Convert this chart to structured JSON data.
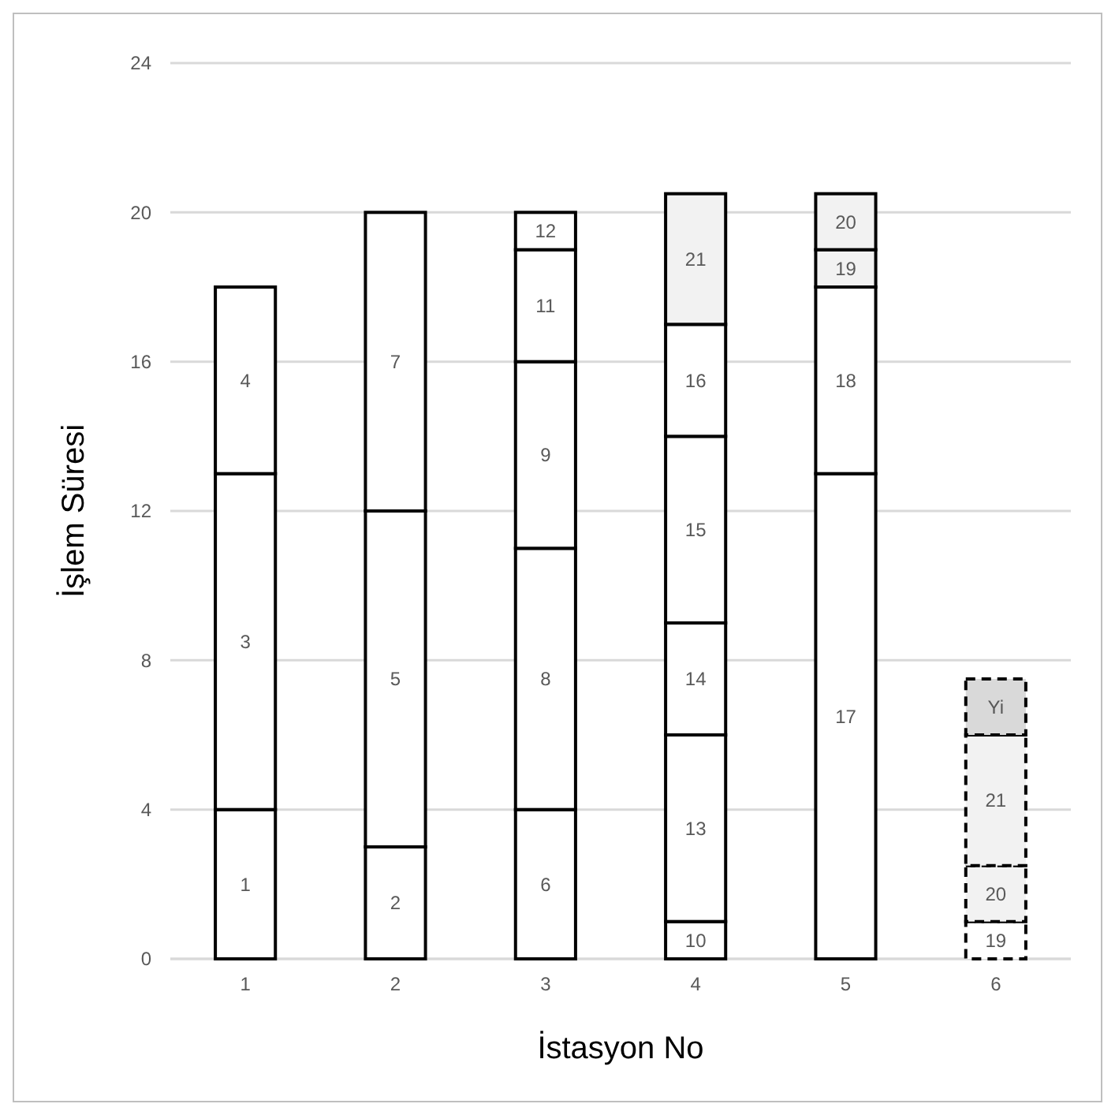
{
  "chart_data": {
    "type": "bar",
    "stacked": true,
    "xlabel": "İstasyon No",
    "ylabel": "İşlem Süresi",
    "categories": [
      "1",
      "2",
      "3",
      "4",
      "5",
      "6"
    ],
    "ylim": [
      0,
      24
    ],
    "yticks": [
      0,
      4,
      8,
      12,
      16,
      20,
      24
    ],
    "grid": "y",
    "series": [
      {
        "name": "1",
        "color": "#ffffff",
        "line_style": "solid",
        "values": [
          4,
          null,
          null,
          null,
          null,
          null
        ]
      },
      {
        "name": "3",
        "color": "#ffffff",
        "line_style": "solid",
        "values": [
          9,
          null,
          null,
          null,
          null,
          null
        ]
      },
      {
        "name": "4",
        "color": "#ffffff",
        "line_style": "solid",
        "values": [
          5,
          null,
          null,
          null,
          null,
          null
        ]
      },
      {
        "name": "2",
        "color": "#ffffff",
        "line_style": "solid",
        "values": [
          null,
          3,
          null,
          null,
          null,
          null
        ]
      },
      {
        "name": "5",
        "color": "#ffffff",
        "line_style": "solid",
        "values": [
          null,
          9,
          null,
          null,
          null,
          null
        ]
      },
      {
        "name": "7",
        "color": "#ffffff",
        "line_style": "solid",
        "values": [
          null,
          8,
          null,
          null,
          null,
          null
        ]
      },
      {
        "name": "6",
        "color": "#ffffff",
        "line_style": "solid",
        "values": [
          null,
          null,
          4,
          null,
          null,
          null
        ]
      },
      {
        "name": "8",
        "color": "#ffffff",
        "line_style": "solid",
        "values": [
          null,
          null,
          7,
          null,
          null,
          null
        ]
      },
      {
        "name": "9",
        "color": "#ffffff",
        "line_style": "solid",
        "values": [
          null,
          null,
          5,
          null,
          null,
          null
        ]
      },
      {
        "name": "11",
        "color": "#ffffff",
        "line_style": "solid",
        "values": [
          null,
          null,
          3,
          null,
          null,
          null
        ]
      },
      {
        "name": "12",
        "color": "#ffffff",
        "line_style": "solid",
        "values": [
          null,
          null,
          1,
          null,
          null,
          null
        ]
      },
      {
        "name": "10",
        "color": "#ffffff",
        "line_style": "solid",
        "values": [
          null,
          null,
          null,
          1,
          null,
          null
        ]
      },
      {
        "name": "13",
        "color": "#ffffff",
        "line_style": "solid",
        "values": [
          null,
          null,
          null,
          5,
          null,
          null
        ]
      },
      {
        "name": "14",
        "color": "#ffffff",
        "line_style": "solid",
        "values": [
          null,
          null,
          null,
          3,
          null,
          null
        ]
      },
      {
        "name": "15",
        "color": "#ffffff",
        "line_style": "solid",
        "values": [
          null,
          null,
          null,
          5,
          null,
          null
        ]
      },
      {
        "name": "16",
        "color": "#ffffff",
        "line_style": "solid",
        "values": [
          null,
          null,
          null,
          3,
          null,
          null
        ]
      },
      {
        "name": "21",
        "color": "#f2f2f2",
        "line_style": "solid",
        "values": [
          null,
          null,
          null,
          3.5,
          null,
          null
        ]
      },
      {
        "name": "17",
        "color": "#ffffff",
        "line_style": "solid",
        "values": [
          null,
          null,
          null,
          null,
          13,
          null
        ]
      },
      {
        "name": "18",
        "color": "#ffffff",
        "line_style": "solid",
        "values": [
          null,
          null,
          null,
          null,
          5,
          null
        ]
      },
      {
        "name": "19",
        "color": "#f2f2f2",
        "line_style": "solid",
        "values": [
          null,
          null,
          null,
          null,
          1,
          null
        ]
      },
      {
        "name": "20",
        "color": "#f2f2f2",
        "line_style": "solid",
        "values": [
          null,
          null,
          null,
          null,
          1.5,
          null
        ]
      },
      {
        "name": "19",
        "color": "#ffffff",
        "line_style": "dashed",
        "values": [
          null,
          null,
          null,
          null,
          null,
          1
        ]
      },
      {
        "name": "20",
        "color": "#f2f2f2",
        "line_style": "dashed",
        "values": [
          null,
          null,
          null,
          null,
          null,
          1.5
        ]
      },
      {
        "name": "21",
        "color": "#f2f2f2",
        "line_style": "dashed",
        "values": [
          null,
          null,
          null,
          null,
          null,
          3.5
        ]
      },
      {
        "name": "Yi",
        "color": "#d9d9d9",
        "line_style": "dashed",
        "values": [
          null,
          null,
          null,
          null,
          null,
          1.5
        ]
      }
    ]
  }
}
